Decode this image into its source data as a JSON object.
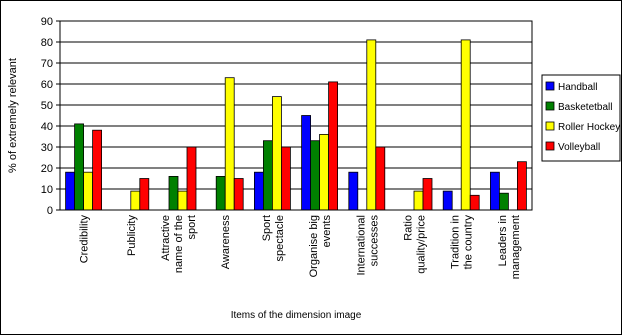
{
  "chart_data": {
    "type": "bar",
    "title": "",
    "xlabel": "Items of the dimension image",
    "ylabel": "% of extremely relevant",
    "ylim": [
      0,
      90
    ],
    "yticks": [
      0,
      10,
      20,
      30,
      40,
      50,
      60,
      70,
      80,
      90
    ],
    "grid": true,
    "legend_position": "right",
    "categories": [
      [
        "Credibility"
      ],
      [
        "Publicity"
      ],
      [
        "Attractive",
        "name of the",
        "sport"
      ],
      [
        "Awareness"
      ],
      [
        "Sport",
        "spectacle"
      ],
      [
        "Organise big",
        "events"
      ],
      [
        "International",
        "successes"
      ],
      [
        "Ratio",
        "quality/price"
      ],
      [
        "Tradition in",
        "the country"
      ],
      [
        "Leaders in",
        "management"
      ]
    ],
    "series": [
      {
        "name": "Handball",
        "color": "#0000ff",
        "values": [
          18,
          0,
          0,
          0,
          18,
          45,
          18,
          0,
          9,
          18
        ]
      },
      {
        "name": "Basketetball",
        "color": "#008000",
        "values": [
          41,
          0,
          16,
          16,
          33,
          33,
          0,
          0,
          0,
          8
        ]
      },
      {
        "name": "Roller Hockey",
        "color": "#ffff00",
        "values": [
          18,
          9,
          9,
          63,
          54,
          36,
          81,
          9,
          81,
          0
        ]
      },
      {
        "name": "Volleyball",
        "color": "#ff0000",
        "values": [
          38,
          15,
          30,
          15,
          30,
          61,
          30,
          15,
          7,
          23
        ]
      }
    ]
  }
}
